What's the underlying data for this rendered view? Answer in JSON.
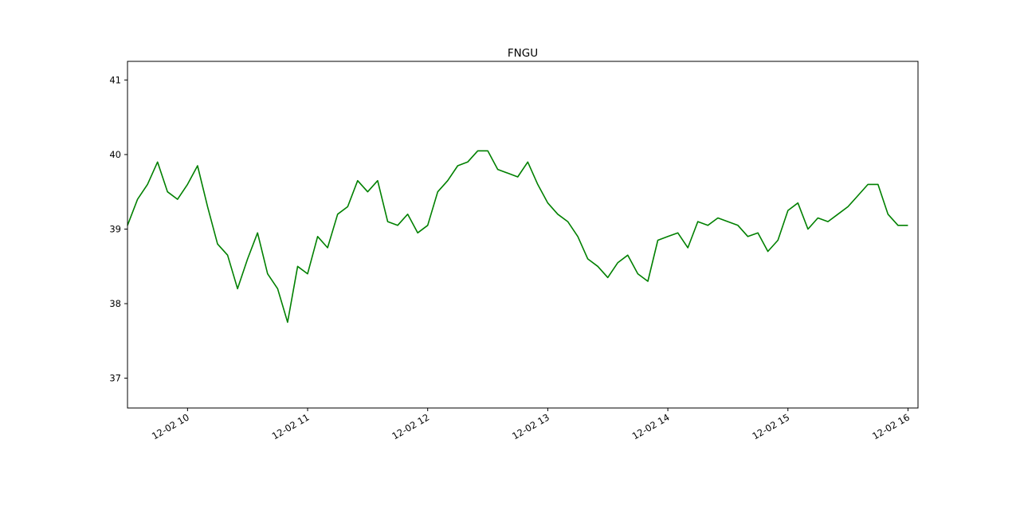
{
  "chart_data": {
    "type": "line",
    "title": "FNGU",
    "xlabel": "",
    "ylabel": "",
    "grid": false,
    "x_ticks": [
      "12-02 10",
      "12-02 11",
      "12-02 12",
      "12-02 13",
      "12-02 14",
      "12-02 15",
      "12-02 16"
    ],
    "y_ticks": [
      "37",
      "38",
      "39",
      "40",
      "41"
    ],
    "xlim": [
      "12-02 09:30",
      "12-02 16:05"
    ],
    "ylim": [
      36.6,
      41.25
    ],
    "series": [
      {
        "color": "#008000",
        "x": [
          "09:30",
          "09:35",
          "09:40",
          "09:45",
          "09:50",
          "09:55",
          "10:00",
          "10:05",
          "10:10",
          "10:15",
          "10:20",
          "10:25",
          "10:30",
          "10:35",
          "10:40",
          "10:45",
          "10:50",
          "10:55",
          "11:00",
          "11:05",
          "11:10",
          "11:15",
          "11:20",
          "11:25",
          "11:30",
          "11:35",
          "11:40",
          "11:45",
          "11:50",
          "11:55",
          "12:00",
          "12:05",
          "12:10",
          "12:15",
          "12:20",
          "12:25",
          "12:30",
          "12:35",
          "12:40",
          "12:45",
          "12:50",
          "12:55",
          "13:00",
          "13:05",
          "13:10",
          "13:15",
          "13:20",
          "13:25",
          "13:30",
          "13:35",
          "13:40",
          "13:45",
          "13:50",
          "13:55",
          "14:00",
          "14:05",
          "14:10",
          "14:15",
          "14:20",
          "14:25",
          "14:30",
          "14:35",
          "14:40",
          "14:45",
          "14:50",
          "14:55",
          "15:00",
          "15:05",
          "15:10",
          "15:15",
          "15:20",
          "15:25",
          "15:30",
          "15:35",
          "15:40",
          "15:45",
          "15:50",
          "15:55",
          "16:00"
        ],
        "values": [
          39.05,
          39.4,
          39.6,
          39.9,
          39.5,
          39.4,
          39.6,
          39.85,
          39.3,
          38.8,
          38.65,
          38.2,
          38.6,
          38.95,
          38.4,
          38.2,
          37.75,
          38.5,
          38.4,
          38.9,
          38.75,
          39.2,
          39.3,
          39.65,
          39.5,
          39.65,
          39.1,
          39.05,
          39.2,
          38.95,
          39.05,
          39.5,
          39.65,
          39.85,
          39.9,
          40.05,
          40.05,
          39.8,
          39.75,
          39.7,
          39.9,
          39.6,
          39.35,
          39.2,
          39.1,
          38.9,
          38.6,
          38.5,
          38.35,
          38.55,
          38.65,
          38.4,
          38.3,
          38.85,
          38.9,
          38.95,
          38.75,
          39.1,
          39.05,
          39.15,
          39.1,
          39.05,
          38.9,
          38.95,
          38.7,
          38.85,
          39.25,
          39.35,
          39.0,
          39.15,
          39.1,
          39.2,
          39.3,
          39.45,
          39.6,
          39.6,
          39.2,
          39.05,
          39.05
        ]
      }
    ]
  }
}
